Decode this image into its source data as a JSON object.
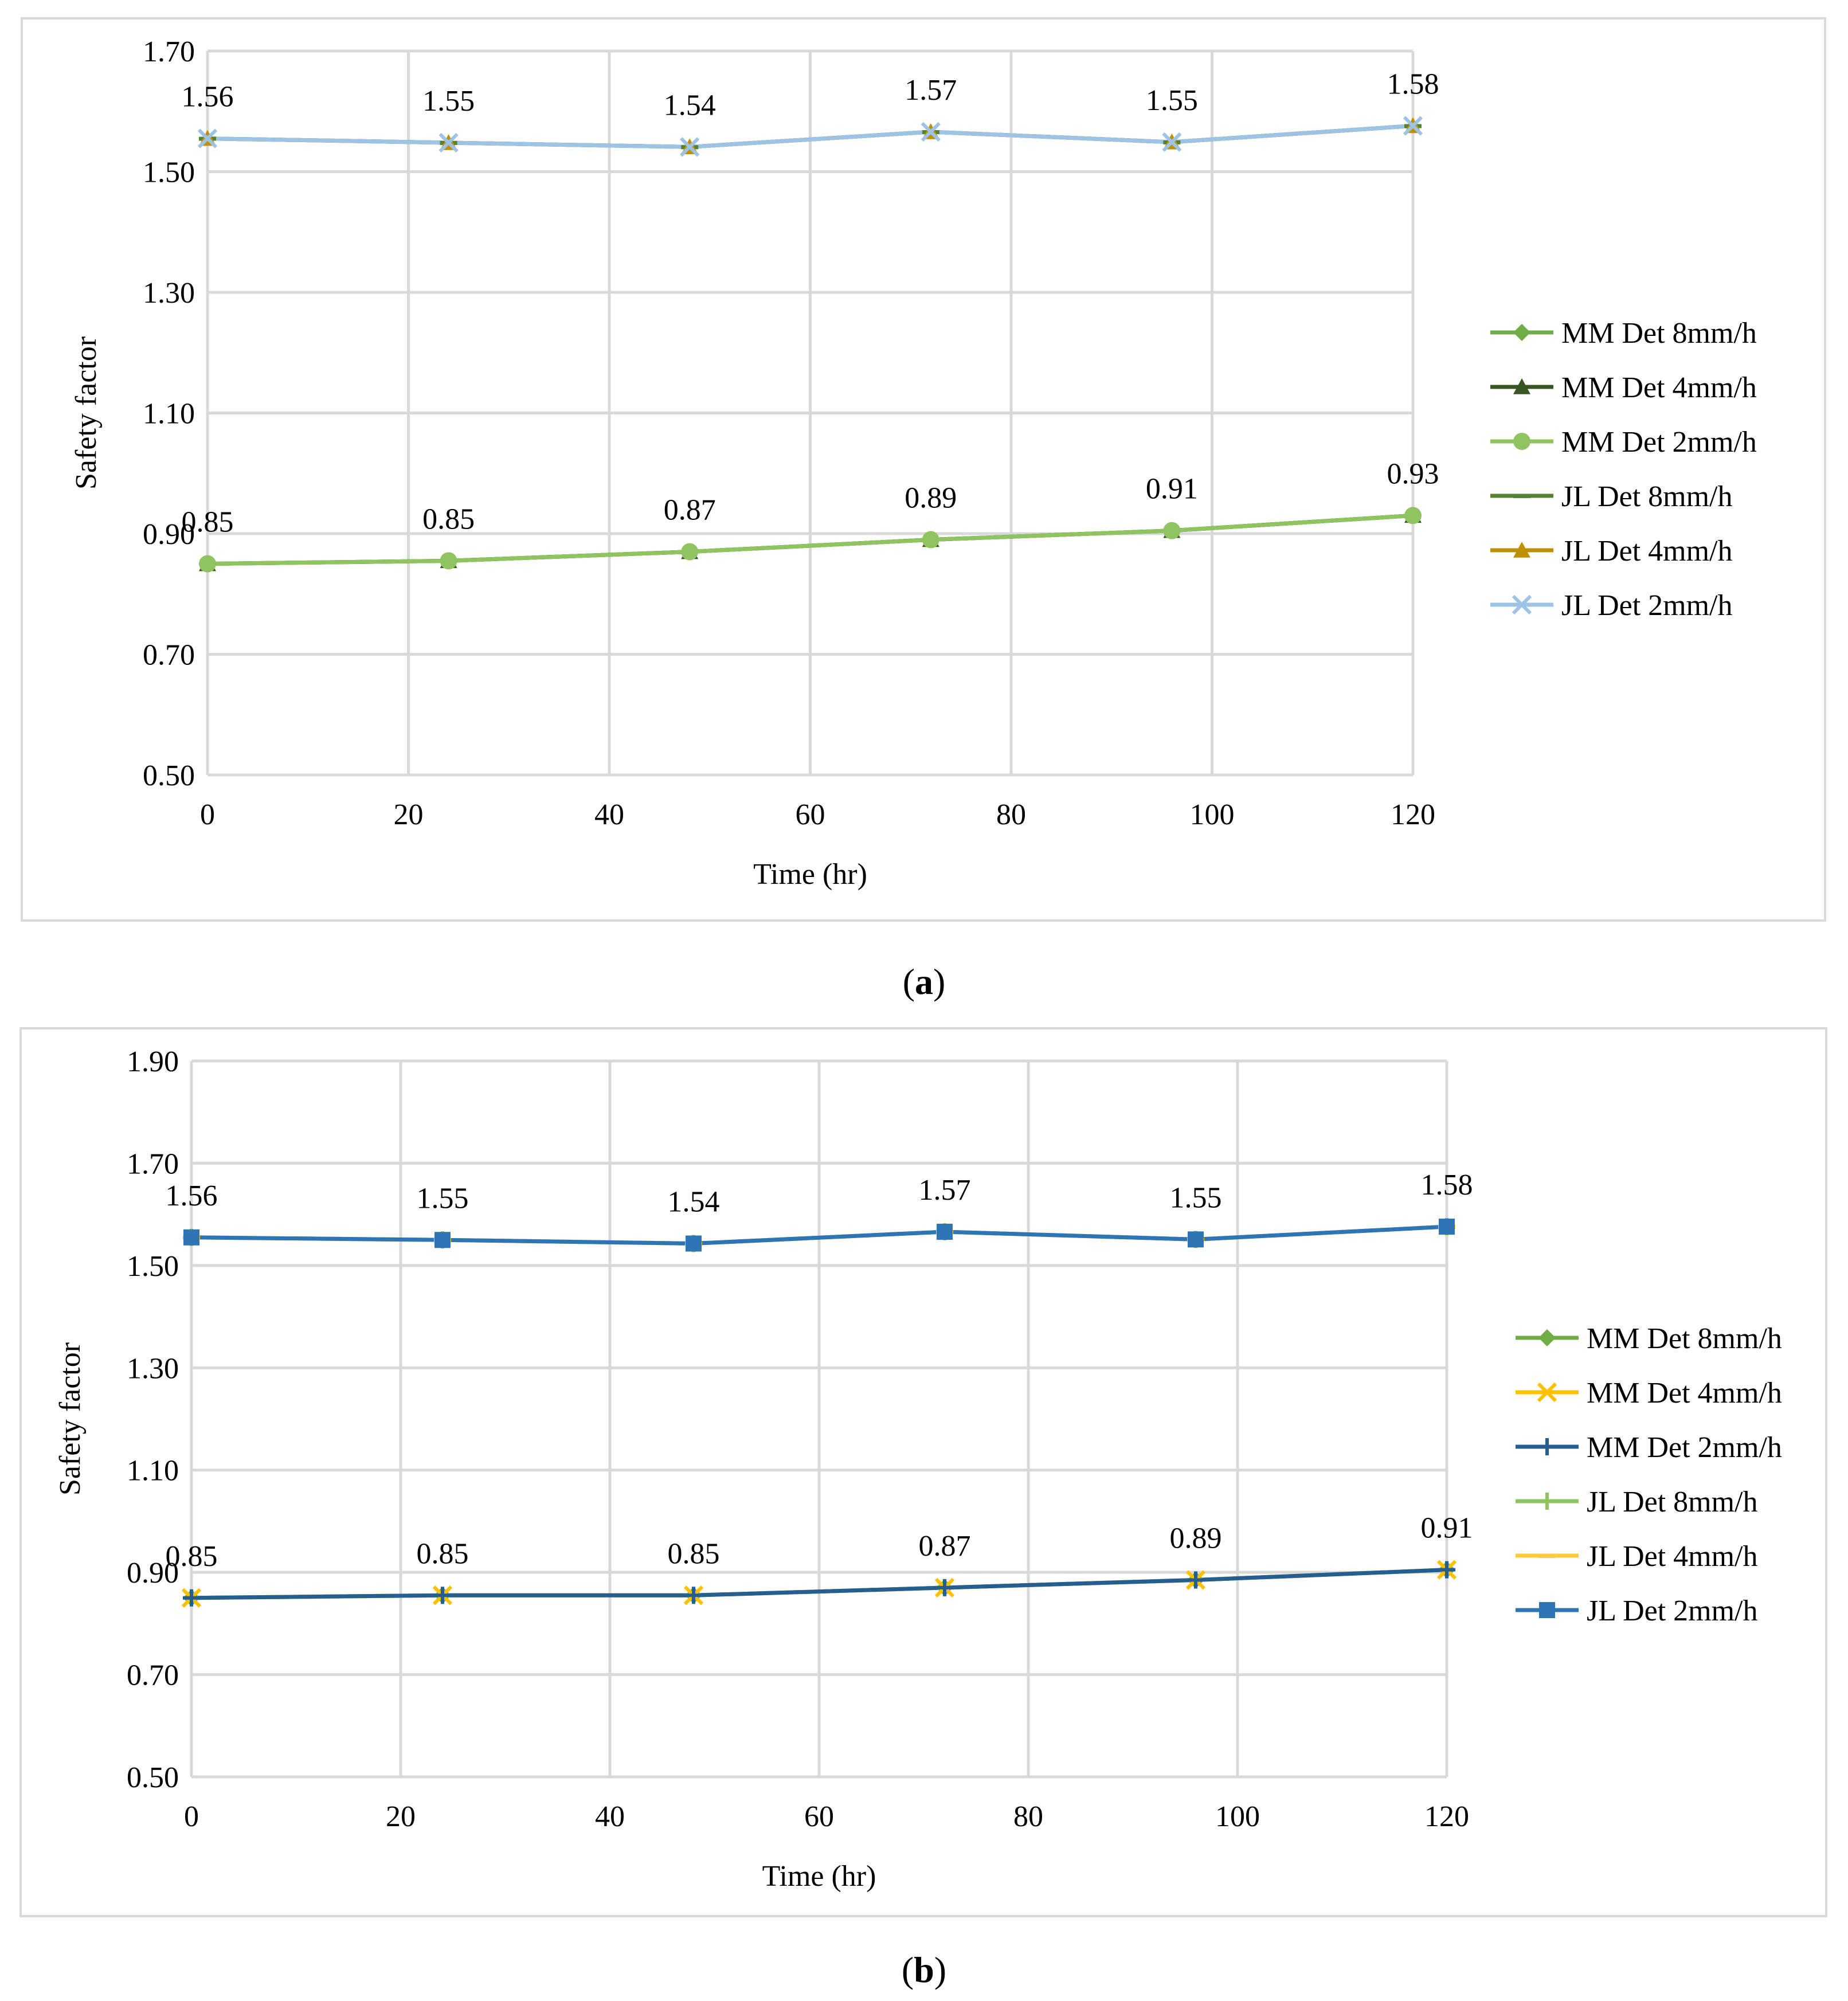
{
  "charts": [
    {
      "id": "a",
      "caption": "a",
      "chart_data": {
        "type": "line",
        "title": "",
        "xlabel": "Time (hr)",
        "ylabel": "Safety factor",
        "x": [
          0,
          24,
          48,
          72,
          96,
          120
        ],
        "xticks": [
          0,
          20,
          40,
          60,
          80,
          100,
          120
        ],
        "xticklabels": [
          "0",
          "20",
          "40",
          "60",
          "80",
          "100",
          "120"
        ],
        "xlim": [
          0,
          120
        ],
        "ylim": [
          0.5,
          1.7
        ],
        "yticks": [
          0.5,
          0.7,
          0.9,
          1.1,
          1.3,
          1.5,
          1.7
        ],
        "yticklabels": [
          "0.50",
          "0.70",
          "0.90",
          "1.10",
          "1.30",
          "1.50",
          "1.70"
        ],
        "grid": true,
        "legend_position": "right",
        "series": [
          {
            "name": "MM Det 8mm/h",
            "values": [
              0.85,
              0.855,
              0.87,
              0.89,
              0.905,
              0.93
            ],
            "color": "#70ad47",
            "marker": "diamond"
          },
          {
            "name": "MM Det 4mm/h",
            "values": [
              0.85,
              0.855,
              0.87,
              0.89,
              0.905,
              0.93
            ],
            "color": "#375623",
            "marker": "triangle"
          },
          {
            "name": "MM Det 2mm/h",
            "values": [
              0.85,
              0.855,
              0.87,
              0.89,
              0.905,
              0.93
            ],
            "color": "#8fc461",
            "marker": "circle"
          },
          {
            "name": "JL Det 8mm/h",
            "values": [
              1.555,
              1.548,
              1.541,
              1.566,
              1.549,
              1.576
            ],
            "color": "#548235",
            "marker": "dash"
          },
          {
            "name": "JL Det 4mm/h",
            "values": [
              1.555,
              1.548,
              1.541,
              1.566,
              1.549,
              1.576
            ],
            "color": "#bf9000",
            "marker": "triangle"
          },
          {
            "name": "JL Det 2mm/h",
            "values": [
              1.555,
              1.548,
              1.541,
              1.566,
              1.549,
              1.576
            ],
            "color": "#9dc3e6",
            "marker": "x"
          }
        ],
        "data_labels": [
          {
            "x": 0,
            "y": 0.85,
            "text": "0.85"
          },
          {
            "x": 24,
            "y": 0.855,
            "text": "0.85"
          },
          {
            "x": 48,
            "y": 0.87,
            "text": "0.87"
          },
          {
            "x": 72,
            "y": 0.89,
            "text": "0.89"
          },
          {
            "x": 96,
            "y": 0.905,
            "text": "0.91"
          },
          {
            "x": 120,
            "y": 0.93,
            "text": "0.93"
          },
          {
            "x": 0,
            "y": 1.555,
            "text": "1.56"
          },
          {
            "x": 24,
            "y": 1.548,
            "text": "1.55"
          },
          {
            "x": 48,
            "y": 1.541,
            "text": "1.54"
          },
          {
            "x": 72,
            "y": 1.566,
            "text": "1.57"
          },
          {
            "x": 96,
            "y": 1.549,
            "text": "1.55"
          },
          {
            "x": 120,
            "y": 1.576,
            "text": "1.58"
          }
        ]
      }
    },
    {
      "id": "b",
      "caption": "b",
      "chart_data": {
        "type": "line",
        "title": "",
        "xlabel": "Time (hr)",
        "ylabel": "Safety factor",
        "x": [
          0,
          24,
          48,
          72,
          96,
          120
        ],
        "xticks": [
          0,
          20,
          40,
          60,
          80,
          100,
          120
        ],
        "xticklabels": [
          "0",
          "20",
          "40",
          "60",
          "80",
          "100",
          "120"
        ],
        "xlim": [
          0,
          120
        ],
        "ylim": [
          0.5,
          1.9
        ],
        "yticks": [
          0.5,
          0.7,
          0.9,
          1.1,
          1.3,
          1.5,
          1.7,
          1.9
        ],
        "yticklabels": [
          "0.50",
          "0.70",
          "0.90",
          "1.10",
          "1.30",
          "1.50",
          "1.70",
          "1.90"
        ],
        "grid": true,
        "legend_position": "right",
        "series": [
          {
            "name": "MM Det 8mm/h",
            "values": [
              0.85,
              0.855,
              0.855,
              0.87,
              0.885,
              0.905
            ],
            "color": "#70ad47",
            "marker": "diamond"
          },
          {
            "name": "MM Det 4mm/h",
            "values": [
              0.85,
              0.855,
              0.855,
              0.87,
              0.885,
              0.905
            ],
            "color": "#ffc000",
            "marker": "x"
          },
          {
            "name": "MM Det 2mm/h",
            "values": [
              0.85,
              0.855,
              0.855,
              0.87,
              0.885,
              0.905
            ],
            "color": "#255e91",
            "marker": "plus"
          },
          {
            "name": "JL Det 8mm/h",
            "values": [
              1.555,
              1.55,
              1.543,
              1.566,
              1.551,
              1.576
            ],
            "color": "#8fc461",
            "marker": "plus"
          },
          {
            "name": "JL Det 4mm/h",
            "values": [
              1.555,
              1.55,
              1.543,
              1.566,
              1.551,
              1.576
            ],
            "color": "#ffcc33",
            "marker": "dash"
          },
          {
            "name": "JL Det 2mm/h",
            "values": [
              1.555,
              1.55,
              1.543,
              1.566,
              1.551,
              1.576
            ],
            "color": "#2e75b6",
            "marker": "square"
          }
        ],
        "data_labels": [
          {
            "x": 0,
            "y": 0.85,
            "text": "0.85"
          },
          {
            "x": 24,
            "y": 0.855,
            "text": "0.85"
          },
          {
            "x": 48,
            "y": 0.855,
            "text": "0.85"
          },
          {
            "x": 72,
            "y": 0.87,
            "text": "0.87"
          },
          {
            "x": 96,
            "y": 0.885,
            "text": "0.89"
          },
          {
            "x": 120,
            "y": 0.905,
            "text": "0.91"
          },
          {
            "x": 0,
            "y": 1.555,
            "text": "1.56"
          },
          {
            "x": 24,
            "y": 1.55,
            "text": "1.55"
          },
          {
            "x": 48,
            "y": 1.543,
            "text": "1.54"
          },
          {
            "x": 72,
            "y": 1.566,
            "text": "1.57"
          },
          {
            "x": 96,
            "y": 1.551,
            "text": "1.55"
          },
          {
            "x": 120,
            "y": 1.576,
            "text": "1.58"
          }
        ]
      }
    }
  ]
}
